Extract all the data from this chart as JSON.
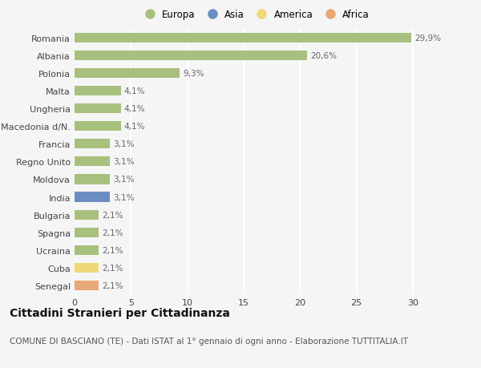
{
  "countries": [
    "Romania",
    "Albania",
    "Polonia",
    "Malta",
    "Ungheria",
    "Macedonia d/N.",
    "Francia",
    "Regno Unito",
    "Moldova",
    "India",
    "Bulgaria",
    "Spagna",
    "Ucraina",
    "Cuba",
    "Senegal"
  ],
  "values": [
    29.9,
    20.6,
    9.3,
    4.1,
    4.1,
    4.1,
    3.1,
    3.1,
    3.1,
    3.1,
    2.1,
    2.1,
    2.1,
    2.1,
    2.1
  ],
  "labels": [
    "29,9%",
    "20,6%",
    "9,3%",
    "4,1%",
    "4,1%",
    "4,1%",
    "3,1%",
    "3,1%",
    "3,1%",
    "3,1%",
    "2,1%",
    "2,1%",
    "2,1%",
    "2,1%",
    "2,1%"
  ],
  "continents": [
    "Europa",
    "Europa",
    "Europa",
    "Europa",
    "Europa",
    "Europa",
    "Europa",
    "Europa",
    "Europa",
    "Asia",
    "Europa",
    "Europa",
    "Europa",
    "America",
    "Africa"
  ],
  "colors": {
    "Europa": "#a8c07e",
    "Asia": "#6b8ec2",
    "America": "#f0d878",
    "Africa": "#e8a878"
  },
  "legend_order": [
    "Europa",
    "Asia",
    "America",
    "Africa"
  ],
  "legend_colors": [
    "#a8c07e",
    "#6b8ec2",
    "#f0d878",
    "#e8a878"
  ],
  "xlim": [
    0,
    32
  ],
  "xticks": [
    0,
    5,
    10,
    15,
    20,
    25,
    30
  ],
  "title": "Cittadini Stranieri per Cittadinanza",
  "subtitle": "COMUNE DI BASCIANO (TE) - Dati ISTAT al 1° gennaio di ogni anno - Elaborazione TUTTITALIA.IT",
  "bg_color": "#f5f5f5",
  "grid_color": "#ffffff",
  "bar_height": 0.55,
  "label_fontsize": 7.5,
  "title_fontsize": 10,
  "subtitle_fontsize": 7.5,
  "tick_fontsize": 8,
  "legend_fontsize": 8.5
}
